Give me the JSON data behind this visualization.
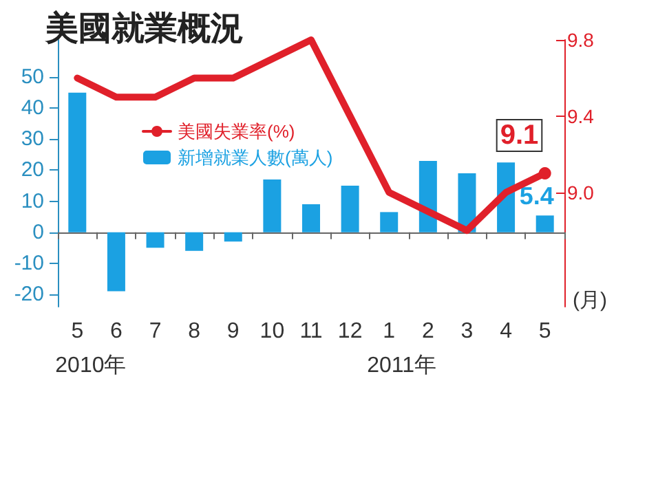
{
  "chart_data": {
    "type": "bar",
    "title": "美國就業概況",
    "xlabel": "(月)",
    "categories": [
      "5",
      "6",
      "7",
      "8",
      "9",
      "10",
      "11",
      "12",
      "1",
      "2",
      "3",
      "4",
      "5"
    ],
    "series": [
      {
        "type": "line",
        "name": "美國失業率(%)",
        "color": "#e0202a",
        "axis": "y2",
        "values": [
          9.6,
          9.5,
          9.5,
          9.6,
          9.6,
          9.7,
          9.8,
          9.4,
          9.0,
          8.9,
          8.8,
          9.0,
          9.1
        ],
        "value_labels": [
          null,
          null,
          null,
          null,
          null,
          null,
          null,
          null,
          null,
          null,
          null,
          null,
          "9.1"
        ]
      },
      {
        "name": "新增就業人數(萬人)",
        "color": "#1ba1e2",
        "values": [
          45,
          -19,
          -5,
          -6,
          -3,
          17,
          9,
          15,
          6.5,
          23,
          19,
          22.5,
          5.4
        ],
        "value_labels": [
          null,
          null,
          null,
          null,
          null,
          null,
          null,
          null,
          null,
          null,
          null,
          null,
          "5.4"
        ]
      }
    ],
    "ylim": [
      -24,
      62
    ],
    "yticks": [
      -20,
      -10,
      0,
      10,
      20,
      30,
      40,
      50
    ],
    "y2lim": [
      8.4,
      9.8
    ],
    "y2ticks": [
      {
        "value": 9.0,
        "label": "9.0"
      },
      9.4,
      9.8
    ],
    "annotations": [
      "2010年",
      "2011年"
    ],
    "legend": "top"
  }
}
